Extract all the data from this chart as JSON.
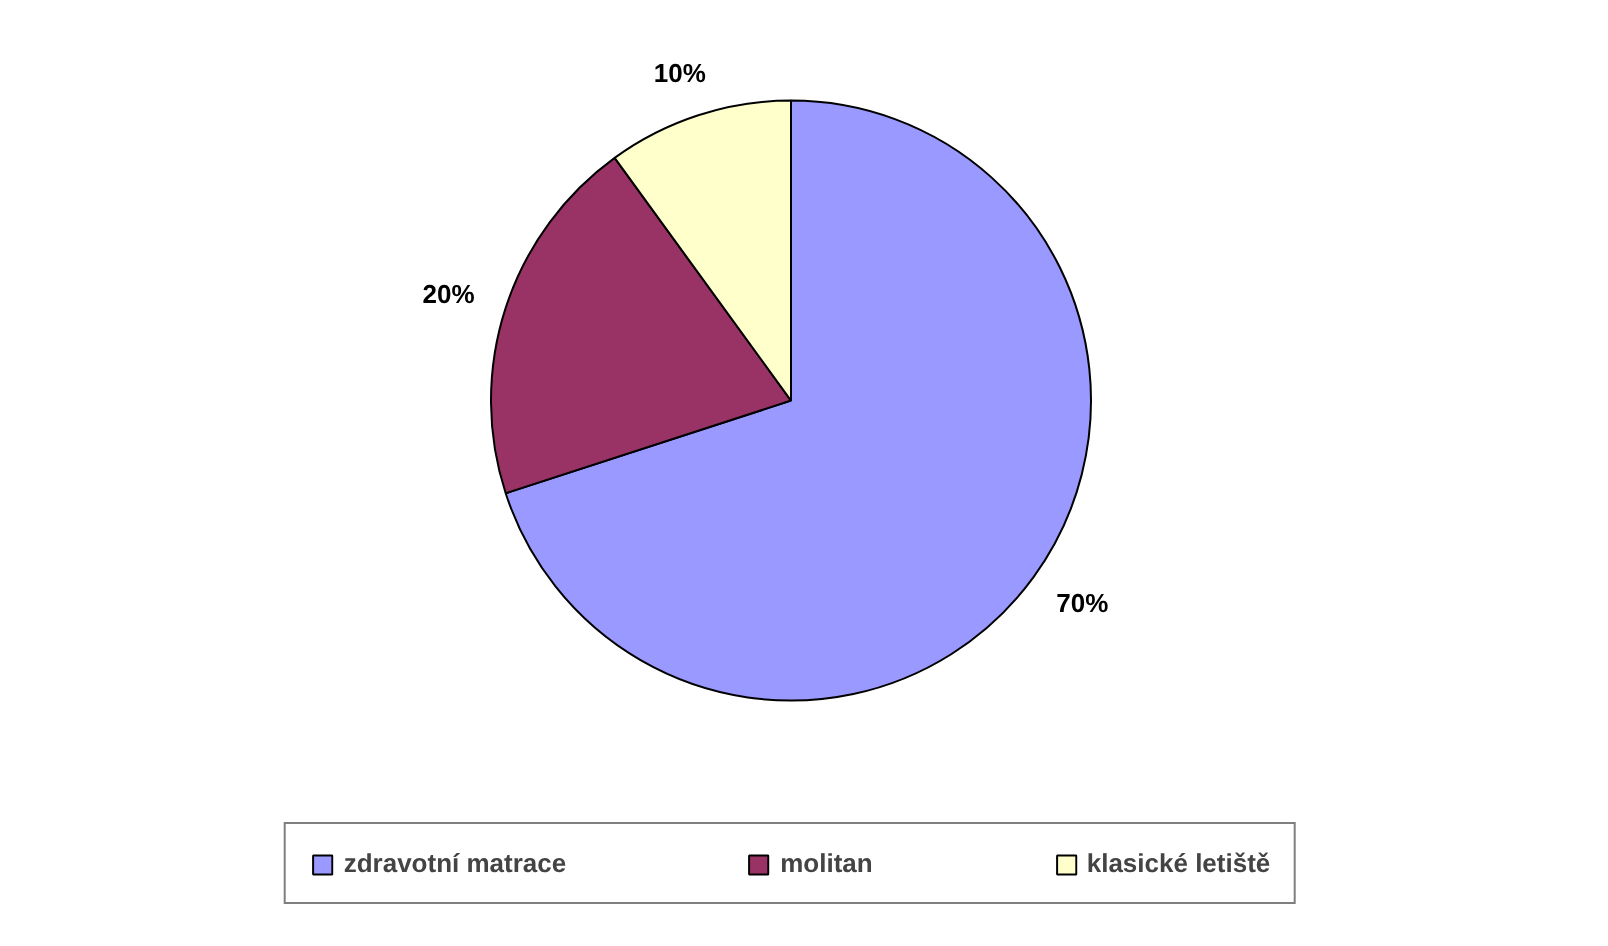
{
  "chart_data": {
    "type": "pie",
    "categories": [
      "zdravotní matrace",
      "molitan",
      "klasické letiště"
    ],
    "values": [
      70,
      20,
      10
    ],
    "colors": [
      "#9999ff",
      "#993366",
      "#ffffcc"
    ],
    "value_labels": [
      "70%",
      "20%",
      "10%"
    ],
    "legend": "bottom"
  }
}
